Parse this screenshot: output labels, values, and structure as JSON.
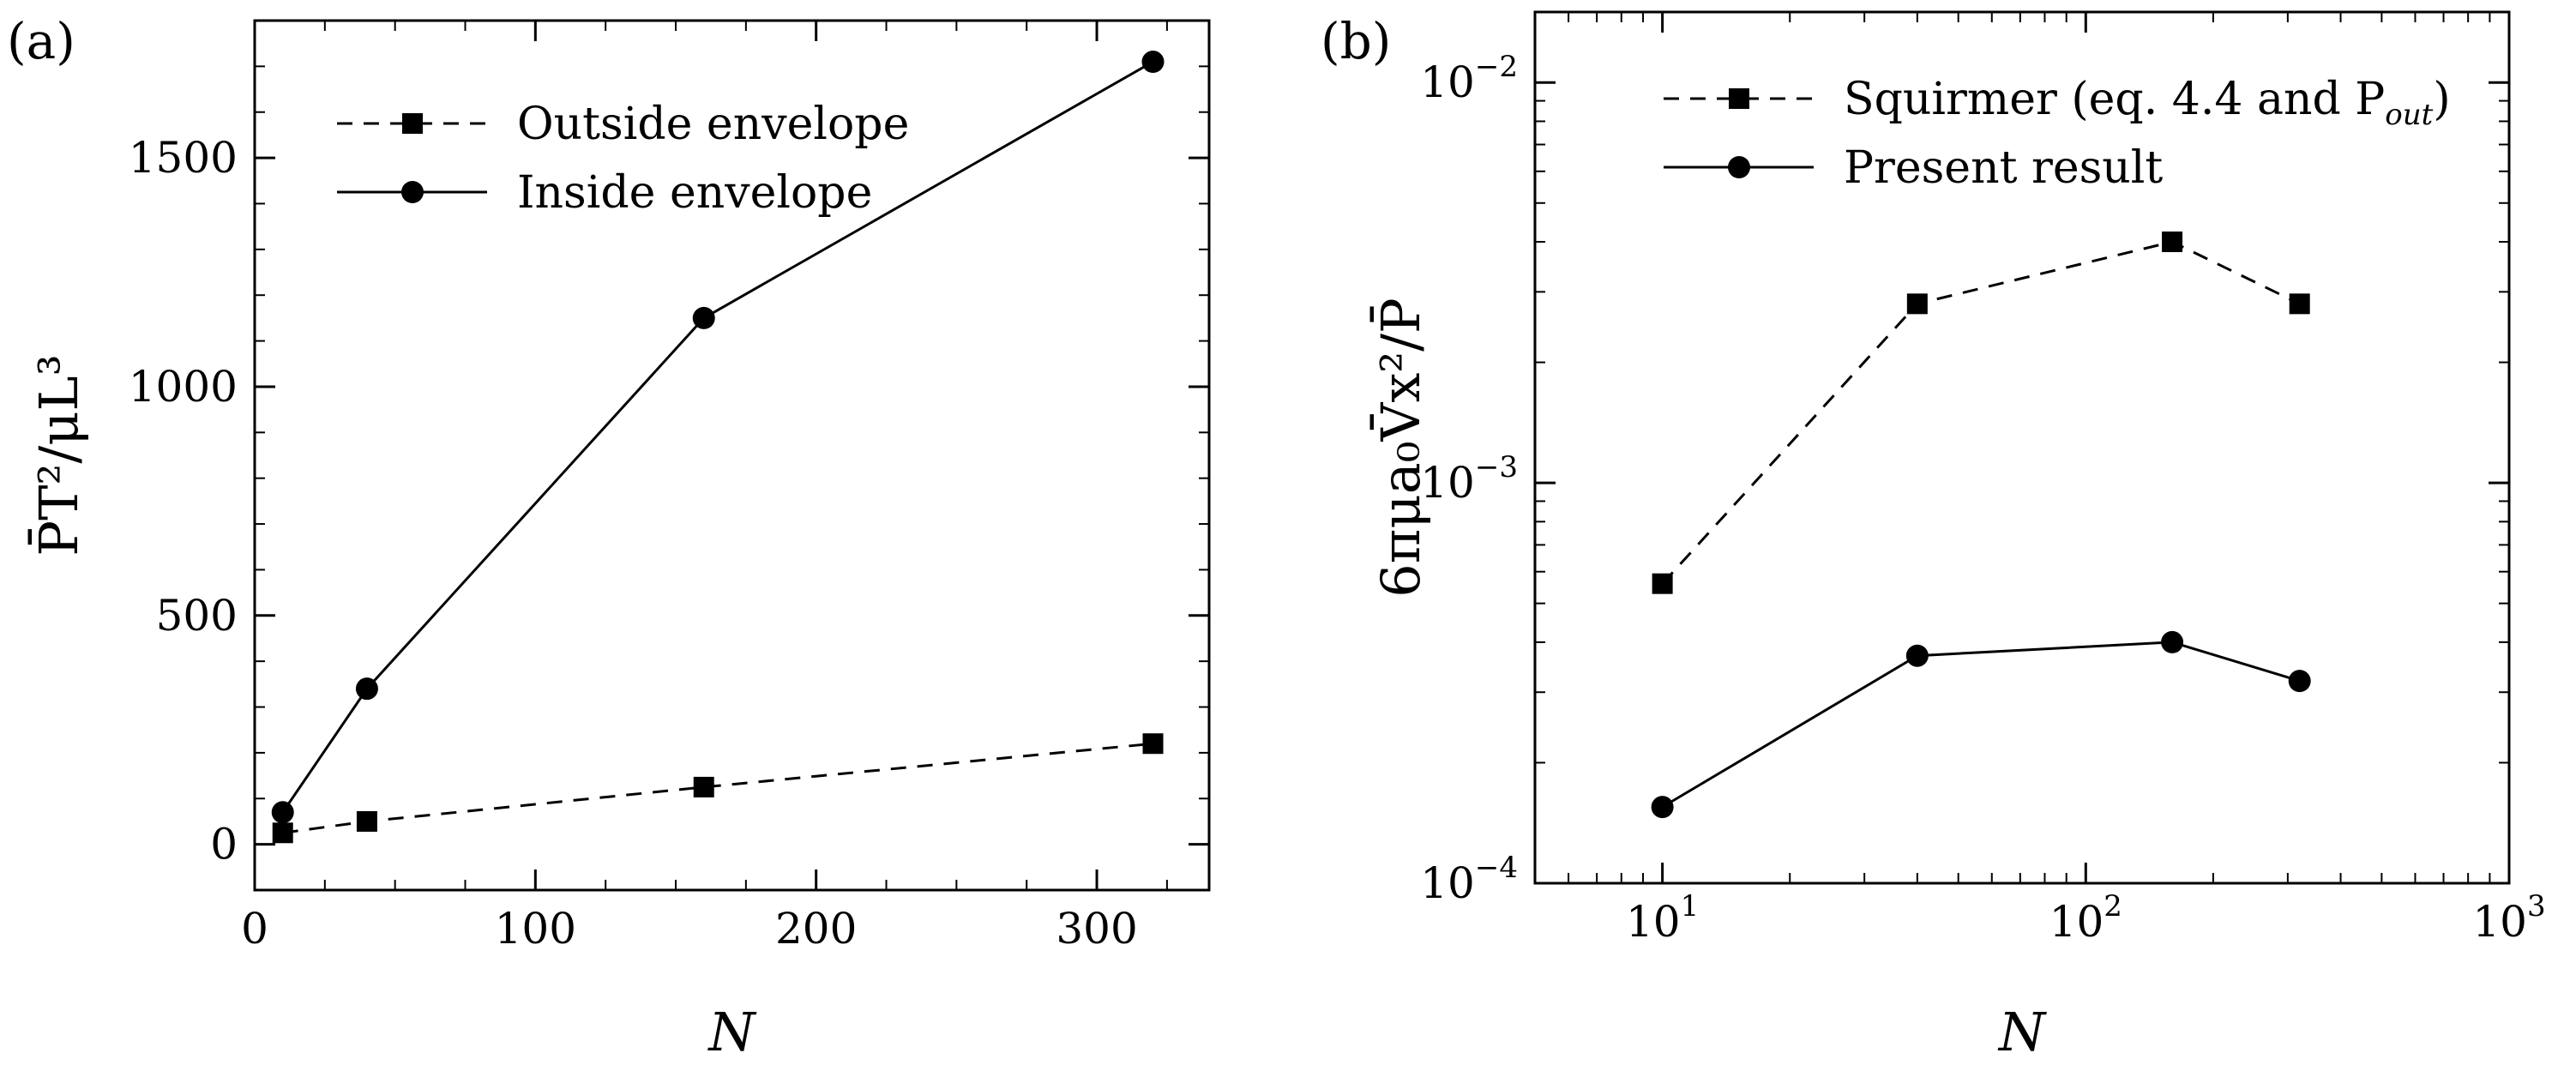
{
  "chart_data": [
    {
      "panel": "(a)",
      "type": "line",
      "xlabel": "N",
      "ylabel": "P̄T²/μL³",
      "xlim": [
        0,
        340
      ],
      "ylim": [
        -100,
        1800
      ],
      "xticks": [
        0,
        100,
        200,
        300
      ],
      "yticks": [
        0,
        500,
        1000,
        1500
      ],
      "xtick_labels": [
        "0",
        "100",
        "200",
        "300"
      ],
      "ytick_labels": [
        "0",
        "500",
        "1000",
        "1500"
      ],
      "legend_position": "top-left",
      "series": [
        {
          "name": "Outside envelope",
          "marker": "square",
          "line": "dashed",
          "x": [
            10,
            40,
            160,
            320
          ],
          "y": [
            25,
            50,
            125,
            220
          ]
        },
        {
          "name": "Inside envelope",
          "marker": "circle",
          "line": "solid",
          "x": [
            10,
            40,
            160,
            320
          ],
          "y": [
            70,
            340,
            1150,
            1710
          ]
        }
      ]
    },
    {
      "panel": "(b)",
      "type": "line",
      "xscale": "log",
      "yscale": "log",
      "xlabel": "N",
      "ylabel": "6πμa₀V̄x²/P̄",
      "xlim": [
        5,
        1000
      ],
      "ylim": [
        0.0001,
        0.015
      ],
      "xticks": [
        10,
        100,
        1000
      ],
      "yticks": [
        0.0001,
        0.001,
        0.01
      ],
      "xtick_labels": [
        {
          "base": "10",
          "exp": "1"
        },
        {
          "base": "10",
          "exp": "2"
        },
        {
          "base": "10",
          "exp": "3"
        }
      ],
      "ytick_labels": [
        {
          "base": "10",
          "exp": "−4"
        },
        {
          "base": "10",
          "exp": "−3"
        },
        {
          "base": "10",
          "exp": "−2"
        }
      ],
      "legend_position": "top-left",
      "series": [
        {
          "name": "Squirmer (eq. 4.4 and P",
          "name_sub": "out",
          "name_end": ")",
          "marker": "square",
          "line": "dashed",
          "x": [
            10,
            40,
            160,
            320
          ],
          "y": [
            0.00056,
            0.0028,
            0.004,
            0.0028
          ]
        },
        {
          "name": "Present result",
          "marker": "circle",
          "line": "solid",
          "x": [
            10,
            40,
            160,
            320
          ],
          "y": [
            0.000155,
            0.00037,
            0.0004,
            0.00032
          ]
        }
      ]
    }
  ]
}
